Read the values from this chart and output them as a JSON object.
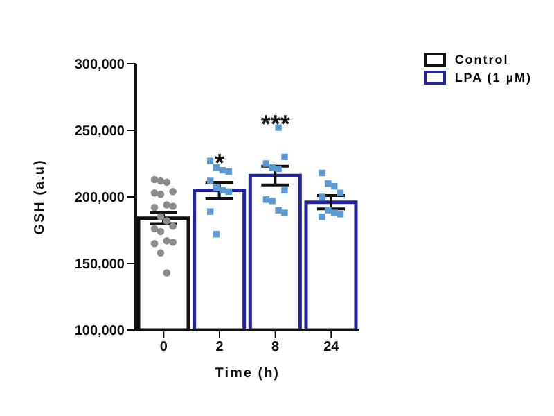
{
  "chart_data": {
    "type": "bar",
    "xlabel": "Time (h)",
    "ylabel": "GSH (a.u)",
    "categories": [
      "0",
      "2",
      "8",
      "24"
    ],
    "series": [
      {
        "name": "Control",
        "color": "#111111",
        "values": [
          184000,
          null,
          null,
          null
        ],
        "errors": [
          4000,
          null,
          null,
          null
        ]
      },
      {
        "name": "LPA (1 µM)",
        "color": "#23239c",
        "values": [
          null,
          205000,
          216000,
          196000
        ],
        "errors": [
          null,
          6000,
          7000,
          5000
        ]
      },
      {
        "type": "scatter",
        "color": "#8c8c8c",
        "marker": "circle",
        "x": [
          "0",
          "0",
          "0",
          "0",
          "0",
          "0",
          "0",
          "0",
          "0",
          "0",
          "0",
          "0",
          "0",
          "0",
          "0",
          "0",
          "0",
          "0",
          "0"
        ],
        "values": [
          213000,
          212000,
          211000,
          204000,
          203000,
          202000,
          194000,
          193000,
          192000,
          185000,
          182000,
          178000,
          176000,
          174000,
          167000,
          166000,
          165000,
          158000,
          143000
        ]
      },
      {
        "type": "scatter",
        "color": "#5b9bd5",
        "marker": "square",
        "x": [
          "2",
          "2",
          "2",
          "2",
          "2",
          "2",
          "2",
          "2",
          "2",
          "2",
          "8",
          "8",
          "8",
          "8",
          "8",
          "8",
          "8",
          "8",
          "8",
          "8",
          "24",
          "24",
          "24",
          "24",
          "24",
          "24",
          "24",
          "24",
          "24"
        ],
        "values": [
          227000,
          222000,
          220000,
          219000,
          212000,
          207000,
          205000,
          204000,
          189000,
          172000,
          252000,
          230000,
          225000,
          222000,
          221000,
          205000,
          198000,
          197000,
          190000,
          188000,
          218000,
          210000,
          208000,
          203000,
          200000,
          190000,
          188000,
          187000,
          185000
        ]
      }
    ],
    "ylim": [
      100000,
      300000
    ],
    "yticks": [
      {
        "value": 100000,
        "label": "100,000"
      },
      {
        "value": 150000,
        "label": "150,000"
      },
      {
        "value": 200000,
        "label": "200,000"
      },
      {
        "value": 250000,
        "label": "250,000"
      },
      {
        "value": 300000,
        "label": "300,000"
      }
    ],
    "annotations": [
      {
        "text": "*",
        "x": "2",
        "y": 226000
      },
      {
        "text": "***",
        "x": "8",
        "y": 255000
      }
    ],
    "grid": false,
    "legend": "top right"
  }
}
